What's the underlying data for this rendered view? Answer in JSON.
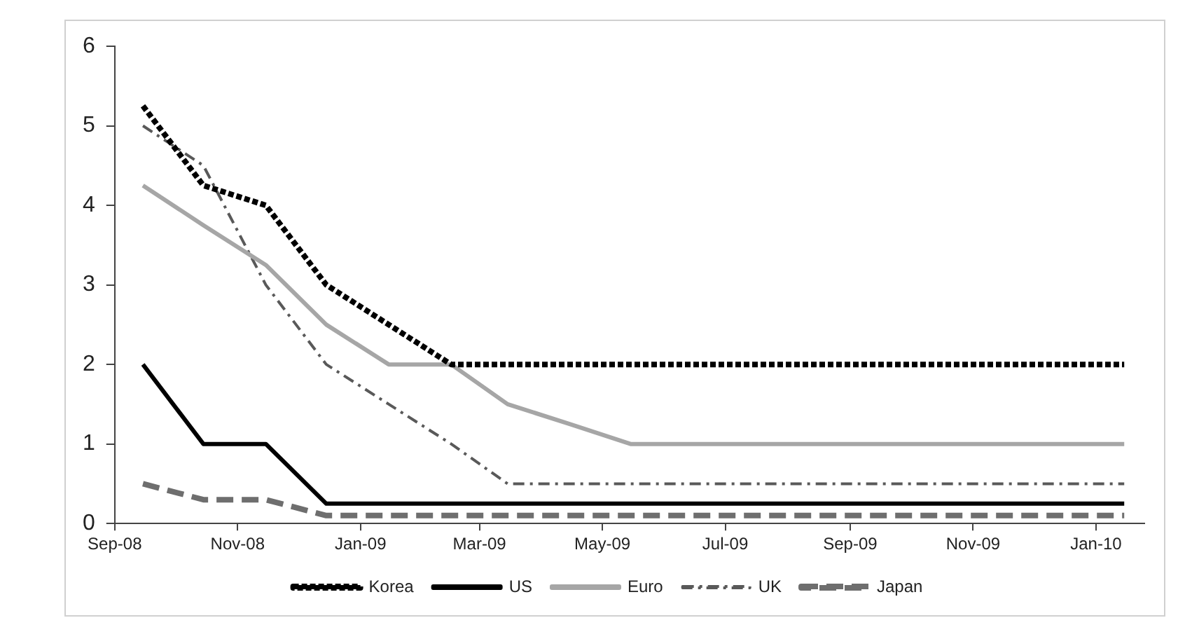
{
  "chart_data": {
    "type": "line",
    "x": [
      "2008-09-15",
      "2008-10-15",
      "2008-11-15",
      "2008-12-15",
      "2009-01-15",
      "2009-02-15",
      "2009-03-15",
      "2009-04-15",
      "2009-05-15",
      "2009-06-15",
      "2009-07-15",
      "2009-08-15",
      "2009-09-15",
      "2009-10-15",
      "2009-11-15",
      "2009-12-15",
      "2010-01-15"
    ],
    "series": [
      {
        "name": "Korea",
        "color": "#000000",
        "line_style": "dotted",
        "values": [
          5.25,
          4.25,
          4.0,
          3.0,
          2.5,
          2.0,
          2.0,
          2.0,
          2.0,
          2.0,
          2.0,
          2.0,
          2.0,
          2.0,
          2.0,
          2.0,
          2.0
        ]
      },
      {
        "name": "US",
        "color": "#000000",
        "line_style": "solid",
        "values": [
          2.0,
          1.0,
          1.0,
          0.25,
          0.25,
          0.25,
          0.25,
          0.25,
          0.25,
          0.25,
          0.25,
          0.25,
          0.25,
          0.25,
          0.25,
          0.25,
          0.25
        ]
      },
      {
        "name": "Euro",
        "color": "#a6a6a6",
        "line_style": "solid",
        "values": [
          4.25,
          3.75,
          3.25,
          2.5,
          2.0,
          2.0,
          1.5,
          1.25,
          1.0,
          1.0,
          1.0,
          1.0,
          1.0,
          1.0,
          1.0,
          1.0,
          1.0
        ]
      },
      {
        "name": "UK",
        "color": "#595959",
        "line_style": "dashdot",
        "values": [
          5.0,
          4.5,
          3.0,
          2.0,
          1.5,
          1.0,
          0.5,
          0.5,
          0.5,
          0.5,
          0.5,
          0.5,
          0.5,
          0.5,
          0.5,
          0.5,
          0.5
        ]
      },
      {
        "name": "Japan",
        "color": "#6e6e6e",
        "line_style": "dashed",
        "values": [
          0.5,
          0.3,
          0.3,
          0.1,
          0.1,
          0.1,
          0.1,
          0.1,
          0.1,
          0.1,
          0.1,
          0.1,
          0.1,
          0.1,
          0.1,
          0.1,
          0.1
        ]
      }
    ],
    "xlim": [
      "2008-09-01",
      "2010-01-25"
    ],
    "xticks": [
      {
        "value": "2008-09-01",
        "label": "Sep-08"
      },
      {
        "value": "2008-11-01",
        "label": "Nov-08"
      },
      {
        "value": "2009-01-01",
        "label": "Jan-09"
      },
      {
        "value": "2009-03-01",
        "label": "Mar-09"
      },
      {
        "value": "2009-05-01",
        "label": "May-09"
      },
      {
        "value": "2009-07-01",
        "label": "Jul-09"
      },
      {
        "value": "2009-09-01",
        "label": "Sep-09"
      },
      {
        "value": "2009-11-01",
        "label": "Nov-09"
      },
      {
        "value": "2010-01-01",
        "label": "Jan-10"
      }
    ],
    "ylim": [
      0,
      6
    ],
    "yticks": [
      0,
      1,
      2,
      3,
      4,
      5,
      6
    ],
    "grid": false,
    "legend": "bottom",
    "marker": "none"
  }
}
